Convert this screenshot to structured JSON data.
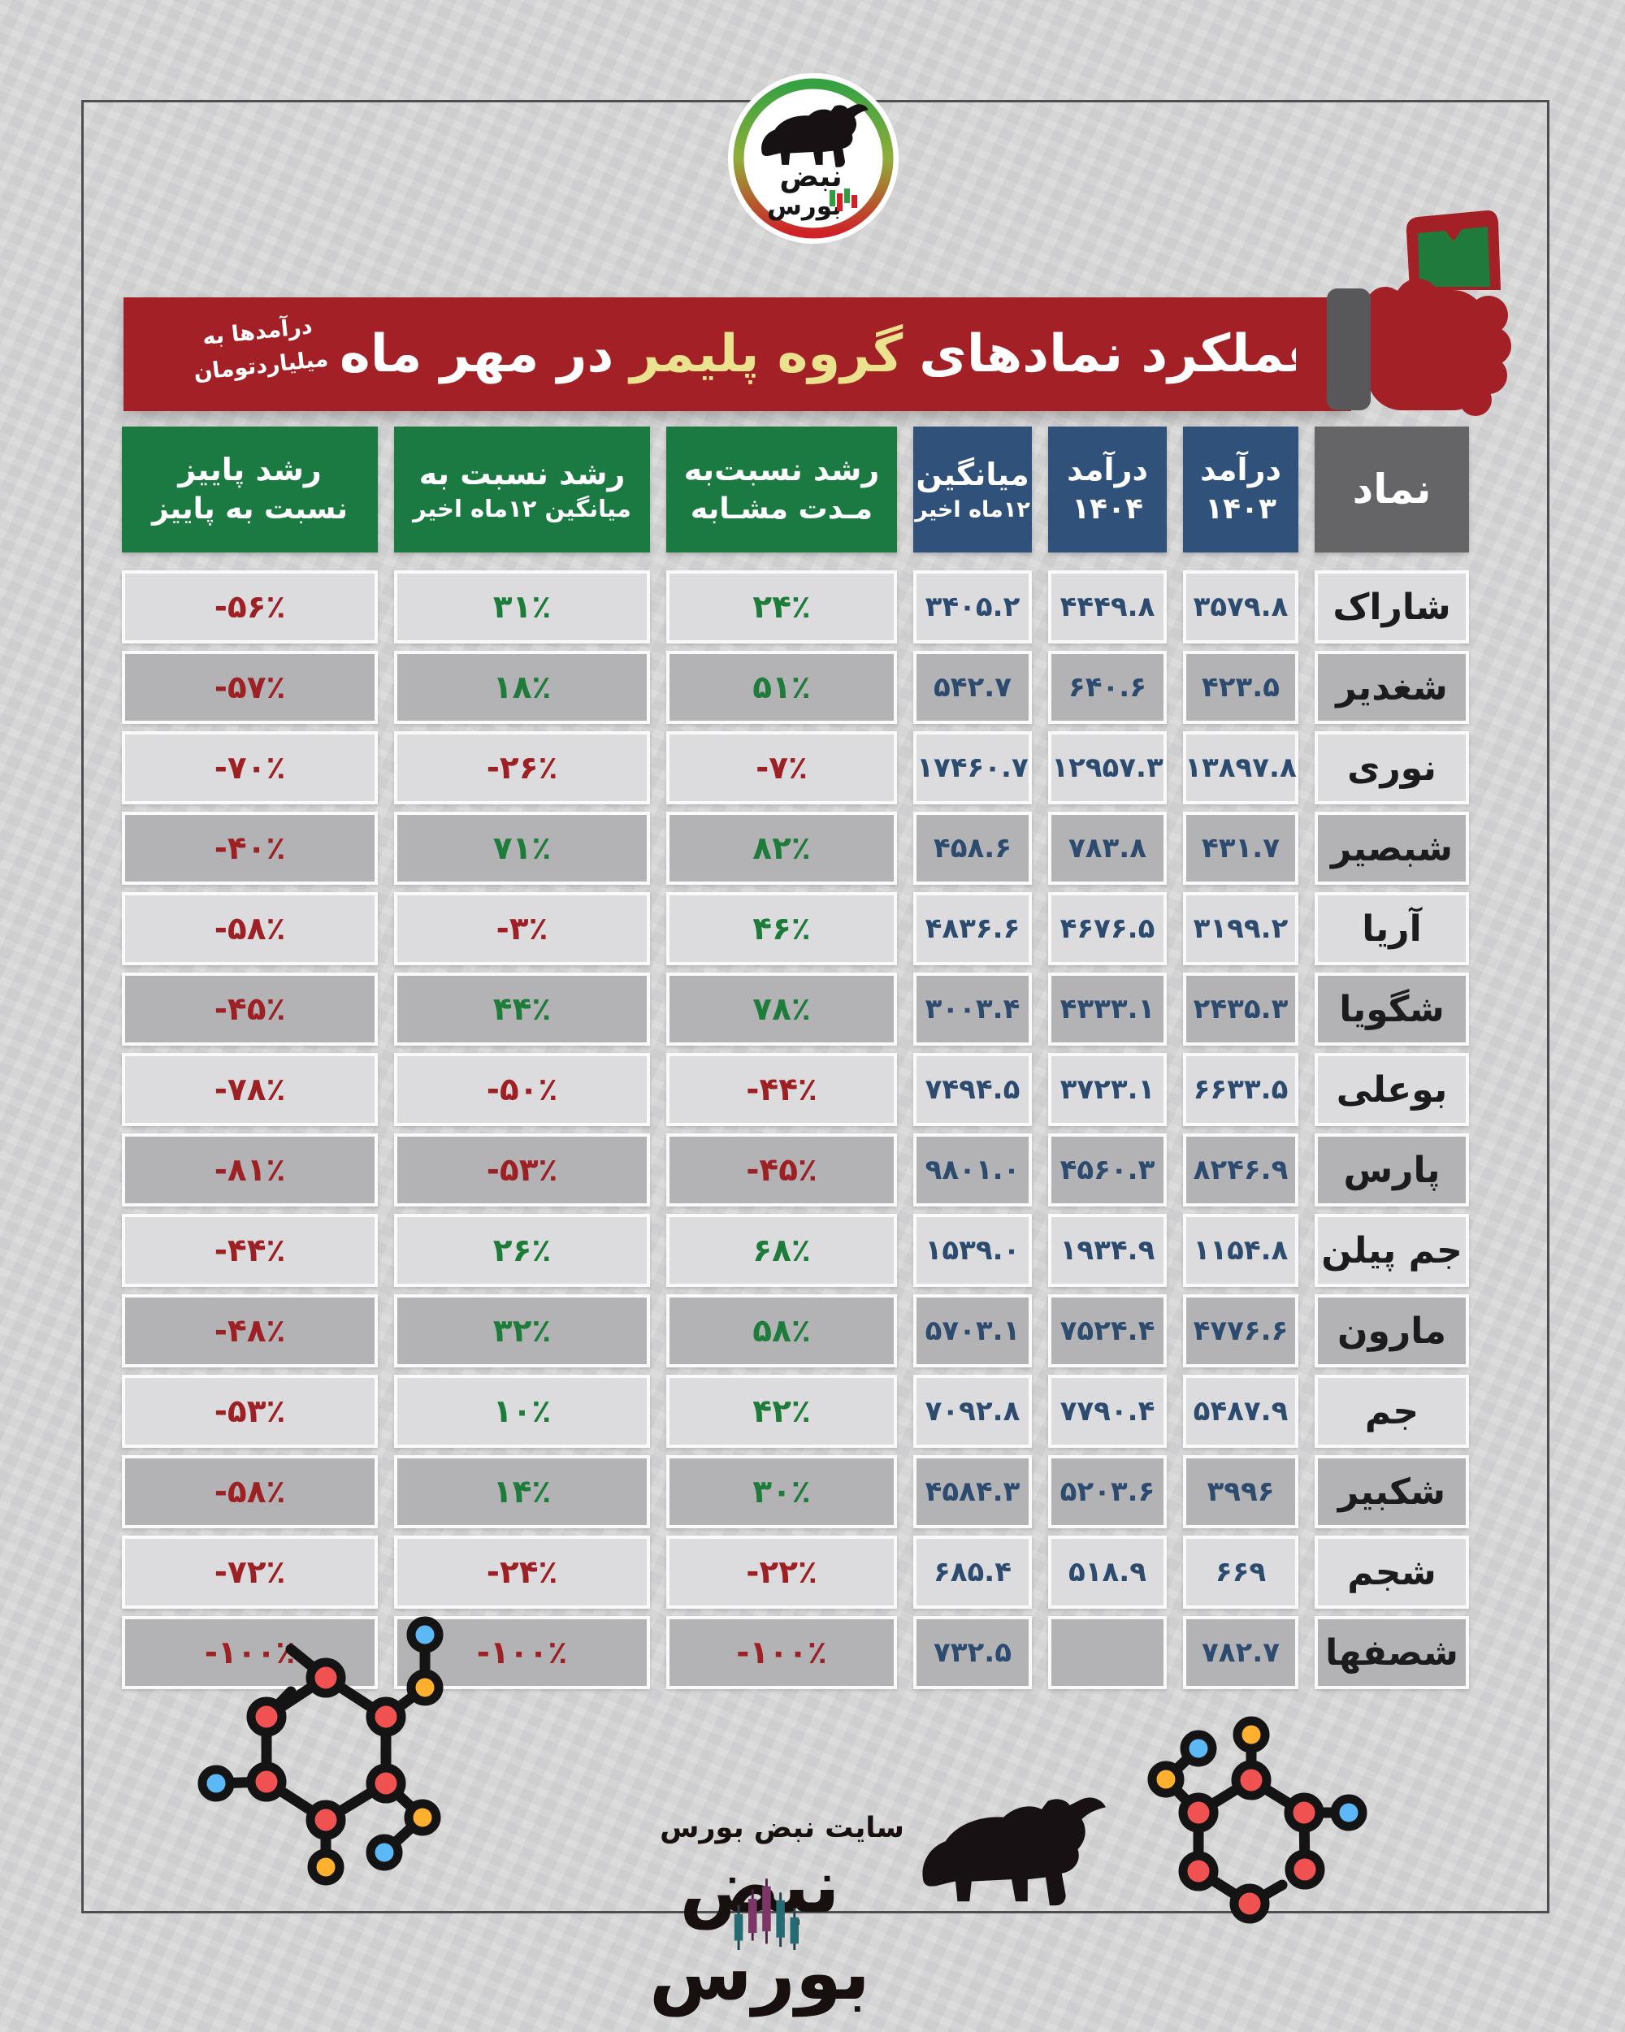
{
  "banner": {
    "note": "درآمدها به\nمیلیاردتومان",
    "title_prefix": "عملکرد نمادهای",
    "title_highlight": "گروه پلیمر",
    "title_suffix": "در مهر ماه"
  },
  "logo": {
    "line1": "نبض",
    "line2": "بورس"
  },
  "footer": {
    "site_label": "سایت نبض بورس",
    "logo_text": "نبض بورس"
  },
  "table": {
    "columns": [
      {
        "key": "symbol",
        "label": "نماد",
        "sub": "",
        "type": "symbol"
      },
      {
        "key": "rev1403",
        "label": "درآمد",
        "sub": "۱۴۰۳",
        "type": "value"
      },
      {
        "key": "rev1404",
        "label": "درآمد",
        "sub": "۱۴۰۴",
        "type": "value"
      },
      {
        "key": "avg12",
        "label": "میانگین",
        "sub": "۱۲ماه اخیر",
        "type": "value"
      },
      {
        "key": "growth_same",
        "label": "رشد نسبت‌به",
        "sub": "مـدت مشـابه",
        "type": "pct"
      },
      {
        "key": "growth_avg",
        "label": "رشد نسبت به",
        "sub": "میانگین ۱۲ماه اخیر",
        "type": "pct"
      },
      {
        "key": "growth_autumn",
        "label": "رشد  پاییز",
        "sub": "نسبت به پاییز",
        "type": "pct"
      }
    ],
    "rows": [
      {
        "symbol": "شاراک",
        "rev1403": "۳۵۷۹.۸",
        "rev1404": "۴۴۴۹.۸",
        "avg12": "۳۴۰۵.۲",
        "growth_same": "۲۴٪",
        "growth_avg": "۳۱٪",
        "growth_autumn": "-۵۶٪"
      },
      {
        "symbol": "شغدیر",
        "rev1403": "۴۲۳.۵",
        "rev1404": "۶۴۰.۶",
        "avg12": "۵۴۲.۷",
        "growth_same": "۵۱٪",
        "growth_avg": "۱۸٪",
        "growth_autumn": "-۵۷٪"
      },
      {
        "symbol": "نوری",
        "rev1403": "۱۳۸۹۷.۸",
        "rev1404": "۱۲۹۵۷.۳",
        "avg12": "۱۷۴۶۰.۷",
        "growth_same": "-۷٪",
        "growth_avg": "-۲۶٪",
        "growth_autumn": "-۷۰٪"
      },
      {
        "symbol": "شبصیر",
        "rev1403": "۴۳۱.۷",
        "rev1404": "۷۸۳.۸",
        "avg12": "۴۵۸.۶",
        "growth_same": "۸۲٪",
        "growth_avg": "۷۱٪",
        "growth_autumn": "-۴۰٪"
      },
      {
        "symbol": "آریا",
        "rev1403": "۳۱۹۹.۲",
        "rev1404": "۴۶۷۶.۵",
        "avg12": "۴۸۳۶.۶",
        "growth_same": "۴۶٪",
        "growth_avg": "-۳٪",
        "growth_autumn": "-۵۸٪"
      },
      {
        "symbol": "شگویا",
        "rev1403": "۲۴۳۵.۳",
        "rev1404": "۴۳۳۳.۱",
        "avg12": "۳۰۰۳.۴",
        "growth_same": "۷۸٪",
        "growth_avg": "۴۴٪",
        "growth_autumn": "-۴۵٪"
      },
      {
        "symbol": "بوعلی",
        "rev1403": "۶۶۳۳.۵",
        "rev1404": "۳۷۲۳.۱",
        "avg12": "۷۴۹۴.۵",
        "growth_same": "-۴۴٪",
        "growth_avg": "-۵۰٪",
        "growth_autumn": "-۷۸٪"
      },
      {
        "symbol": "پارس",
        "rev1403": "۸۲۴۶.۹",
        "rev1404": "۴۵۶۰.۳",
        "avg12": "۹۸۰۱.۰",
        "growth_same": "-۴۵٪",
        "growth_avg": "-۵۳٪",
        "growth_autumn": "-۸۱٪"
      },
      {
        "symbol": "جم پیلن",
        "rev1403": "۱۱۵۴.۸",
        "rev1404": "۱۹۳۴.۹",
        "avg12": "۱۵۳۹.۰",
        "growth_same": "۶۸٪",
        "growth_avg": "۲۶٪",
        "growth_autumn": "-۴۴٪"
      },
      {
        "symbol": "مارون",
        "rev1403": "۴۷۷۶.۶",
        "rev1404": "۷۵۲۴.۴",
        "avg12": "۵۷۰۳.۱",
        "growth_same": "۵۸٪",
        "growth_avg": "۳۲٪",
        "growth_autumn": "-۴۸٪"
      },
      {
        "symbol": "جم",
        "rev1403": "۵۴۸۷.۹",
        "rev1404": "۷۷۹۰.۴",
        "avg12": "۷۰۹۲.۸",
        "growth_same": "۴۲٪",
        "growth_avg": "۱۰٪",
        "growth_autumn": "-۵۳٪"
      },
      {
        "symbol": "شکبیر",
        "rev1403": "۳۹۹۶",
        "rev1404": "۵۲۰۳.۶",
        "avg12": "۴۵۸۴.۳",
        "growth_same": "۳۰٪",
        "growth_avg": "۱۴٪",
        "growth_autumn": "-۵۸٪"
      },
      {
        "symbol": "شجم",
        "rev1403": "۶۶۹",
        "rev1404": "۵۱۸.۹",
        "avg12": "۶۸۵.۴",
        "growth_same": "-۲۲٪",
        "growth_avg": "-۲۴٪",
        "growth_autumn": "-۷۲٪"
      },
      {
        "symbol": "شصفها",
        "rev1403": "۷۸۲.۷",
        "rev1404": "",
        "avg12": "۷۳۲.۵",
        "growth_same": "-۱۰۰٪",
        "growth_avg": "-۱۰۰٪",
        "growth_autumn": "-۱۰۰٪"
      }
    ]
  },
  "chart_data": {
    "type": "table",
    "title": "عملکرد نمادهای گروه پلیمر در مهر ماه",
    "unit_note": "درآمدها به میلیارد تومان",
    "columns": [
      "نماد",
      "درآمد ۱۴۰۳",
      "درآمد ۱۴۰۴",
      "میانگین ۱۲ماه اخیر",
      "رشد نسبت‌به مدت مشابه ٪",
      "رشد نسبت به میانگین ۱۲ماه اخیر ٪",
      "رشد پاییز نسبت به پاییز ٪"
    ],
    "rows": [
      [
        "شاراک",
        3579.8,
        4449.8,
        3405.2,
        24,
        31,
        -56
      ],
      [
        "شغدیر",
        423.5,
        640.6,
        542.7,
        51,
        18,
        -57
      ],
      [
        "نوری",
        13897.8,
        12957.3,
        17460.7,
        -7,
        -26,
        -70
      ],
      [
        "شبصیر",
        431.7,
        783.8,
        458.6,
        82,
        71,
        -40
      ],
      [
        "آریا",
        3199.2,
        4676.5,
        4836.6,
        46,
        -3,
        -58
      ],
      [
        "شگویا",
        2435.3,
        4333.1,
        3003.4,
        78,
        44,
        -45
      ],
      [
        "بوعلی",
        6633.5,
        3723.1,
        7494.5,
        -44,
        -50,
        -78
      ],
      [
        "پارس",
        8246.9,
        4560.3,
        9801.0,
        -45,
        -53,
        -81
      ],
      [
        "جم پیلن",
        1154.8,
        1934.9,
        1539.0,
        68,
        26,
        -44
      ],
      [
        "مارون",
        4776.6,
        7524.4,
        5703.1,
        58,
        32,
        -48
      ],
      [
        "جم",
        5487.9,
        7790.4,
        7092.8,
        42,
        10,
        -53
      ],
      [
        "شکبیر",
        3996,
        5203.6,
        4584.3,
        30,
        14,
        -58
      ],
      [
        "شجم",
        669,
        518.9,
        685.4,
        -22,
        -24,
        -72
      ],
      [
        "شصفها",
        782.7,
        null,
        732.5,
        -100,
        -100,
        -100
      ]
    ]
  },
  "colors": {
    "bg": "#d8d8d9",
    "banner_red": "#a32126",
    "banner_yellow": "#eae28e",
    "header_green": "#1a7a42",
    "header_blue": "#30527a",
    "header_gray": "#656568",
    "row_light": "#dcdcde",
    "row_dark": "#b3b3b6",
    "value_blue": "#2c4b6e",
    "pct_green": "#1e7c3a",
    "pct_red": "#9d2025",
    "money_green": "#1e7b3c",
    "cuff_gray": "#58585a",
    "atom_red": "#f05252",
    "atom_orange": "#ffb02e",
    "atom_blue": "#5db8f8"
  }
}
